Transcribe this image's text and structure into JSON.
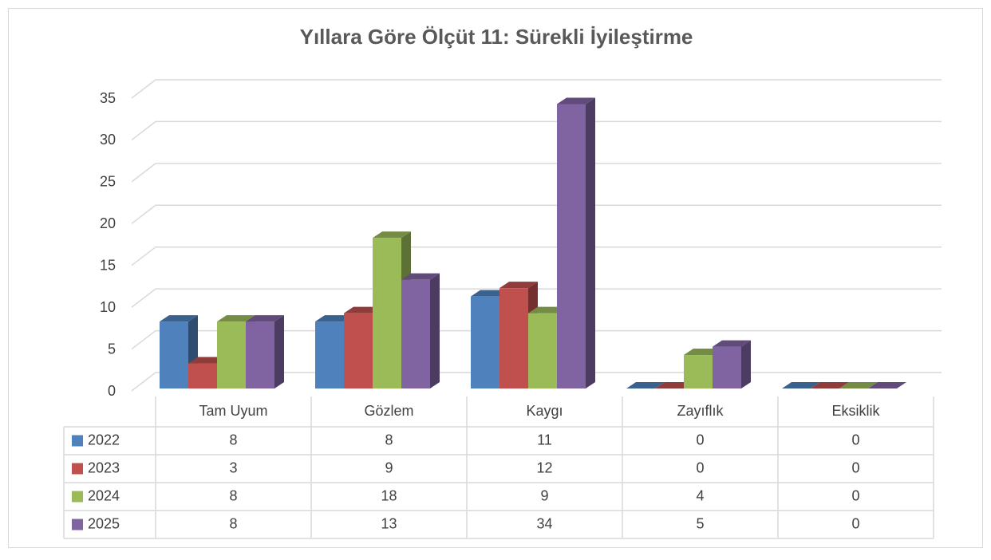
{
  "chart_data": {
    "type": "bar3d",
    "title": "Yıllara Göre Ölçüt 11: Sürekli İyileştirme",
    "categories": [
      "Tam Uyum",
      "Gözlem",
      "Kaygı",
      "Zayıflık",
      "Eksiklik"
    ],
    "series": [
      {
        "name": "2022",
        "color": "#4f81bd",
        "values": [
          8,
          8,
          11,
          0,
          0
        ]
      },
      {
        "name": "2023",
        "color": "#c0504d",
        "values": [
          3,
          9,
          12,
          0,
          0
        ]
      },
      {
        "name": "2024",
        "color": "#9bbb59",
        "values": [
          8,
          18,
          9,
          4,
          0
        ]
      },
      {
        "name": "2025",
        "color": "#8064a2",
        "values": [
          8,
          13,
          34,
          5,
          0
        ]
      }
    ],
    "ylim": [
      0,
      35
    ],
    "yticks": [
      0,
      5,
      10,
      15,
      20,
      25,
      30,
      35
    ],
    "grid": true,
    "data_table": true
  }
}
